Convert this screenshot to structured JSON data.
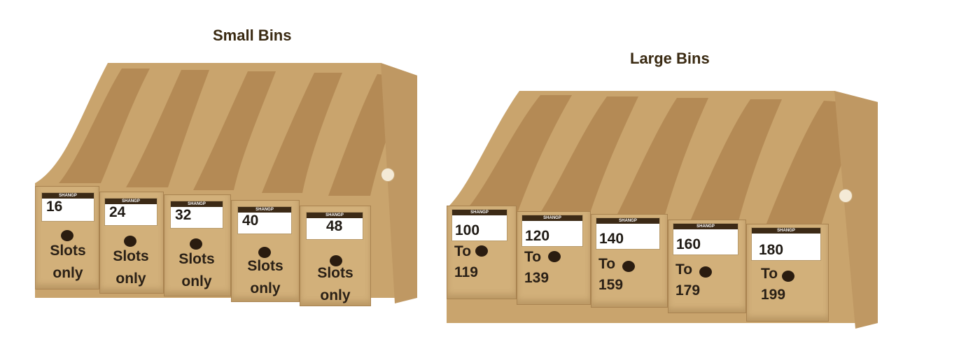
{
  "small_bins": {
    "title": "Small Bins",
    "bins": [
      {
        "brand": "SHANGP",
        "number": "16",
        "line1": "Slots",
        "line2": "only"
      },
      {
        "brand": "SHANGP",
        "number": "24",
        "line1": "Slots",
        "line2": "only"
      },
      {
        "brand": "SHANGP",
        "number": "32",
        "line1": "Slots",
        "line2": "only"
      },
      {
        "brand": "SHANGP",
        "number": "40",
        "line1": "Slots",
        "line2": "only"
      },
      {
        "brand": "SHANGP",
        "number": "48",
        "line1": "Slots",
        "line2": "only"
      }
    ]
  },
  "large_bins": {
    "title": "Large Bins",
    "bins": [
      {
        "brand": "SHANGP",
        "number": "100",
        "line1": "To",
        "line2": "119"
      },
      {
        "brand": "SHANGP",
        "number": "120",
        "line1": "To",
        "line2": "139"
      },
      {
        "brand": "SHANGP",
        "number": "140",
        "line1": "To",
        "line2": "159"
      },
      {
        "brand": "SHANGP",
        "number": "160",
        "line1": "To",
        "line2": "179"
      },
      {
        "brand": "SHANGP",
        "number": "180",
        "line1": "To",
        "line2": "199"
      }
    ]
  },
  "colors": {
    "cardboard": "#d2b07a",
    "cardboard_dark": "#a98350",
    "title_text": "#3a2a12"
  }
}
